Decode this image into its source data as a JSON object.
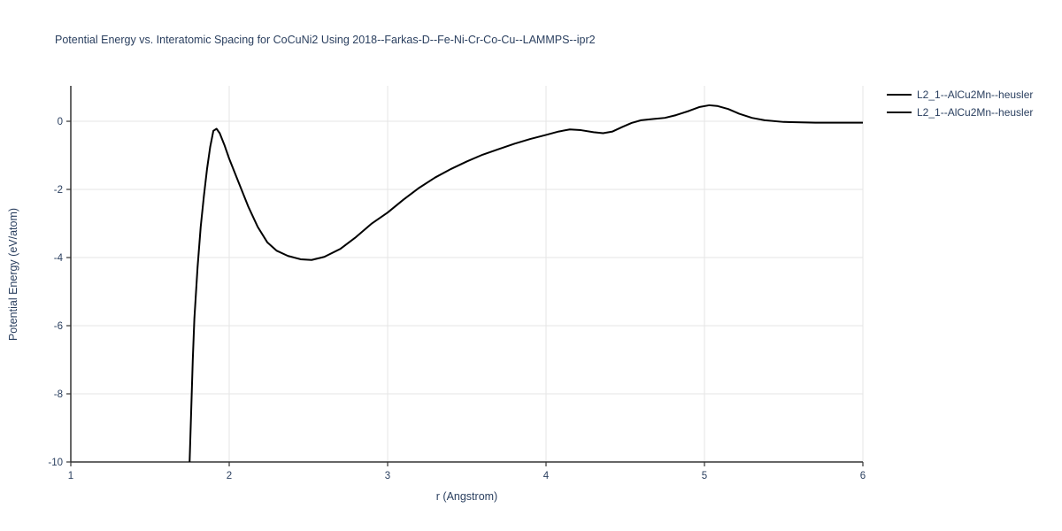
{
  "chart_data": {
    "type": "line",
    "title": "Potential Energy vs. Interatomic Spacing for CoCuNi2 Using 2018--Farkas-D--Fe-Ni-Cr-Co-Cu--LAMMPS--ipr2",
    "xlabel": "r (Angstrom)",
    "ylabel": "Potential Energy (eV/atom)",
    "xlim": [
      1,
      6
    ],
    "ylim": [
      -10,
      1.04
    ],
    "x_ticks": [
      1,
      2,
      3,
      4,
      5,
      6
    ],
    "y_ticks": [
      0,
      -2,
      -4,
      -6,
      -8,
      -10
    ],
    "grid": true,
    "legend_position": "top-right-outside",
    "line_color": "#000000",
    "grid_color": "#e5e5e5",
    "axis_color": "#333333",
    "text_color": "#2a3f5f",
    "series": [
      {
        "name": "L2_1--AlCu2Mn--heusler",
        "color": "#000000",
        "points": [
          [
            1.75,
            -10.0
          ],
          [
            1.76,
            -8.5
          ],
          [
            1.77,
            -7.0
          ],
          [
            1.78,
            -5.8
          ],
          [
            1.8,
            -4.3
          ],
          [
            1.82,
            -3.1
          ],
          [
            1.84,
            -2.2
          ],
          [
            1.86,
            -1.4
          ],
          [
            1.88,
            -0.75
          ],
          [
            1.9,
            -0.28
          ],
          [
            1.92,
            -0.22
          ],
          [
            1.94,
            -0.35
          ],
          [
            1.97,
            -0.7
          ],
          [
            2.0,
            -1.1
          ],
          [
            2.06,
            -1.8
          ],
          [
            2.12,
            -2.5
          ],
          [
            2.18,
            -3.1
          ],
          [
            2.24,
            -3.55
          ],
          [
            2.3,
            -3.8
          ],
          [
            2.37,
            -3.95
          ],
          [
            2.45,
            -4.05
          ],
          [
            2.52,
            -4.07
          ],
          [
            2.6,
            -3.98
          ],
          [
            2.7,
            -3.75
          ],
          [
            2.8,
            -3.4
          ],
          [
            2.9,
            -3.0
          ],
          [
            3.0,
            -2.68
          ],
          [
            3.1,
            -2.3
          ],
          [
            3.2,
            -1.95
          ],
          [
            3.3,
            -1.65
          ],
          [
            3.4,
            -1.4
          ],
          [
            3.5,
            -1.18
          ],
          [
            3.6,
            -0.98
          ],
          [
            3.7,
            -0.82
          ],
          [
            3.8,
            -0.66
          ],
          [
            3.9,
            -0.52
          ],
          [
            4.0,
            -0.4
          ],
          [
            4.08,
            -0.3
          ],
          [
            4.15,
            -0.24
          ],
          [
            4.22,
            -0.26
          ],
          [
            4.3,
            -0.32
          ],
          [
            4.36,
            -0.35
          ],
          [
            4.42,
            -0.3
          ],
          [
            4.48,
            -0.17
          ],
          [
            4.54,
            -0.05
          ],
          [
            4.6,
            0.03
          ],
          [
            4.68,
            0.07
          ],
          [
            4.75,
            0.1
          ],
          [
            4.82,
            0.18
          ],
          [
            4.9,
            0.3
          ],
          [
            4.97,
            0.42
          ],
          [
            5.03,
            0.47
          ],
          [
            5.08,
            0.45
          ],
          [
            5.15,
            0.36
          ],
          [
            5.22,
            0.22
          ],
          [
            5.3,
            0.1
          ],
          [
            5.38,
            0.03
          ],
          [
            5.5,
            -0.02
          ],
          [
            5.7,
            -0.04
          ],
          [
            6.0,
            -0.04
          ]
        ]
      },
      {
        "name": "L2_1--AlCu2Mn--heusler",
        "color": "#000000",
        "points": []
      }
    ]
  }
}
